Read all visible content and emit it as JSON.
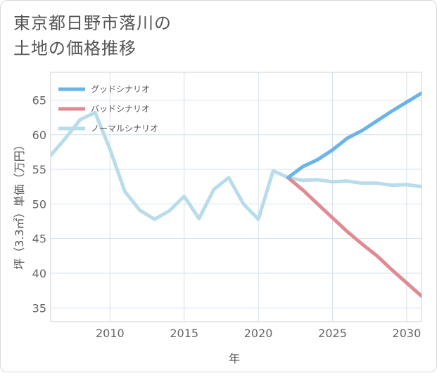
{
  "title_lines": [
    "東京都日野市落川の",
    "土地の価格推移"
  ],
  "chart_data": {
    "type": "line",
    "title": "東京都日野市落川の土地の価格推移",
    "xlabel": "年",
    "ylabel": "坪（3.3㎡）単価（万円）",
    "xlim": [
      2006,
      2031
    ],
    "ylim": [
      33,
      69
    ],
    "xticks": [
      2010,
      2015,
      2020,
      2025,
      2030
    ],
    "yticks": [
      35,
      40,
      45,
      50,
      55,
      60,
      65
    ],
    "grid": true,
    "legend_position": "top-left",
    "series": [
      {
        "name": "グッドシナリオ",
        "color": "#6ab4e8",
        "x": [
          2022,
          2023,
          2024,
          2025,
          2026,
          2027,
          2028,
          2029,
          2030,
          2031
        ],
        "values": [
          53.8,
          55.4,
          56.4,
          57.8,
          59.5,
          60.6,
          62.0,
          63.4,
          64.7,
          66.0
        ]
      },
      {
        "name": "バッドシナリオ",
        "color": "#e08a92",
        "x": [
          2022,
          2023,
          2024,
          2025,
          2026,
          2027,
          2028,
          2029,
          2030,
          2031
        ],
        "values": [
          53.8,
          52.0,
          50.0,
          48.0,
          46.0,
          44.2,
          42.5,
          40.5,
          38.6,
          36.7
        ]
      },
      {
        "name": "ノーマルシナリオ",
        "color": "#b8dcea",
        "x": [
          2006,
          2007,
          2008,
          2009,
          2010,
          2011,
          2012,
          2013,
          2014,
          2015,
          2016,
          2017,
          2018,
          2019,
          2020,
          2021,
          2022,
          2023,
          2024,
          2025,
          2026,
          2027,
          2028,
          2029,
          2030,
          2031
        ],
        "values": [
          57.0,
          59.5,
          62.2,
          63.2,
          57.9,
          51.8,
          49.1,
          47.8,
          49.0,
          51.1,
          47.9,
          52.1,
          53.8,
          50.0,
          47.8,
          54.8,
          53.8,
          53.4,
          53.5,
          53.2,
          53.3,
          53.0,
          53.0,
          52.7,
          52.8,
          52.5
        ]
      }
    ]
  }
}
